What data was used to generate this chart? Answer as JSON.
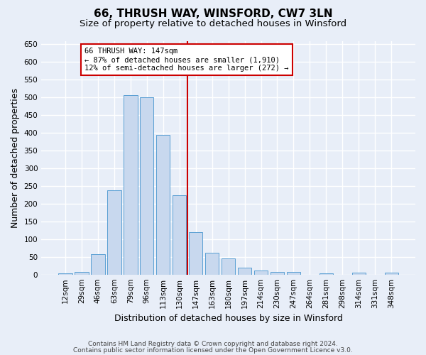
{
  "title": "66, THRUSH WAY, WINSFORD, CW7 3LN",
  "subtitle": "Size of property relative to detached houses in Winsford",
  "xlabel": "Distribution of detached houses by size in Winsford",
  "ylabel": "Number of detached properties",
  "bar_color": "#c8d8ee",
  "bar_edge_color": "#5a9fd4",
  "bg_color": "#e8eef8",
  "grid_color": "#ffffff",
  "categories": [
    "12sqm",
    "29sqm",
    "46sqm",
    "63sqm",
    "79sqm",
    "96sqm",
    "113sqm",
    "130sqm",
    "147sqm",
    "163sqm",
    "180sqm",
    "197sqm",
    "214sqm",
    "230sqm",
    "247sqm",
    "264sqm",
    "281sqm",
    "298sqm",
    "314sqm",
    "331sqm",
    "348sqm"
  ],
  "values": [
    4,
    8,
    58,
    238,
    507,
    500,
    395,
    223,
    120,
    62,
    46,
    20,
    12,
    8,
    8,
    0,
    4,
    0,
    6,
    0,
    6
  ],
  "ylim": [
    0,
    660
  ],
  "yticks": [
    0,
    50,
    100,
    150,
    200,
    250,
    300,
    350,
    400,
    450,
    500,
    550,
    600,
    650
  ],
  "property_label": "66 THRUSH WAY: 147sqm",
  "pct_smaller": "87% of detached houses are smaller (1,910)",
  "pct_larger": "12% of semi-detached houses are larger (272)",
  "vline_color": "#cc0000",
  "annotation_box_color": "#cc0000",
  "footnote1": "Contains HM Land Registry data © Crown copyright and database right 2024.",
  "footnote2": "Contains public sector information licensed under the Open Government Licence v3.0.",
  "title_fontsize": 11,
  "subtitle_fontsize": 9.5,
  "label_fontsize": 9,
  "tick_fontsize": 7.5,
  "annot_fontsize": 7.5,
  "footnote_fontsize": 6.5
}
